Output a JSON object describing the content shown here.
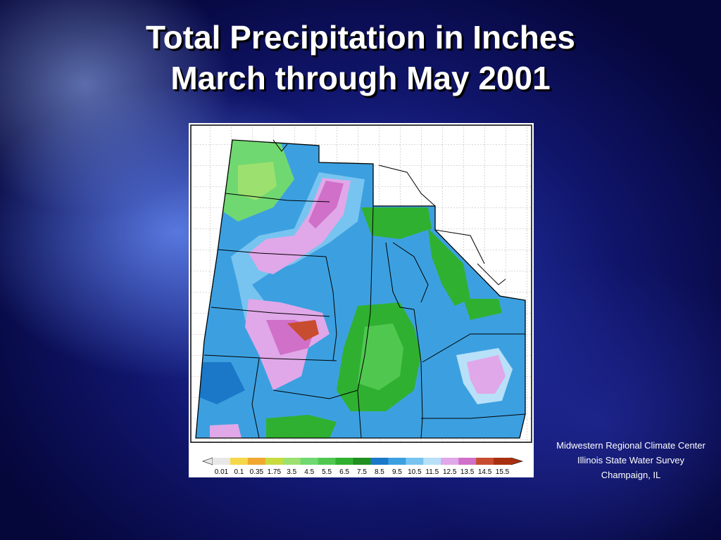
{
  "title": {
    "line1": "Total Precipitation in Inches",
    "line2": "March through May 2001"
  },
  "map": {
    "legend": {
      "labels": [
        "0.01",
        "0.1",
        "0.35",
        "1.75",
        "3.5",
        "4.5",
        "5.5",
        "6.5",
        "7.5",
        "8.5",
        "9.5",
        "10.5",
        "11.5",
        "12.5",
        "13.5",
        "14.5",
        "15.5"
      ],
      "colors": [
        "#e8e8e8",
        "#f5d74a",
        "#f0a830",
        "#c8dc40",
        "#9ce070",
        "#70d870",
        "#50c850",
        "#30b030",
        "#209020",
        "#1b78c8",
        "#3ca0e0",
        "#78c4f0",
        "#b8e0f8",
        "#e0a8e8",
        "#d070c8",
        "#c84c30",
        "#a83010"
      ]
    },
    "colors": {
      "outline": "#000000",
      "grid": "#9a9a9a"
    }
  },
  "credits": {
    "line1": "Midwestern Regional Climate Center",
    "line2": "Illinois State Water Survey",
    "line3": "Champaign, IL"
  }
}
